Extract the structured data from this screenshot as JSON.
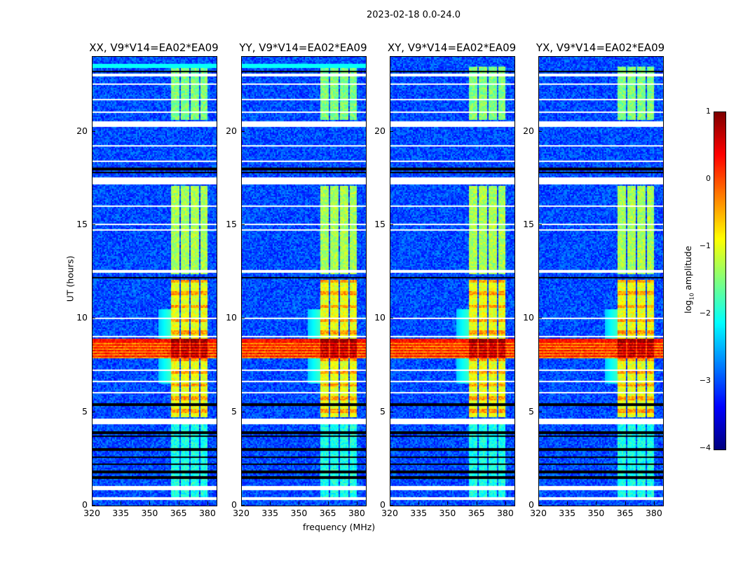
{
  "suptitle": "2023-02-18 0.0-24.0",
  "xlabel": "frequency (MHz)",
  "ylabel": "UT (hours)",
  "colorbar": {
    "label_main": "log",
    "label_sub": "10",
    "label_rest": " amplitude",
    "min": -4,
    "max": 1,
    "ticks": [
      "1",
      "0",
      "−1",
      "−2",
      "−3",
      "−4"
    ],
    "tick_values": [
      1,
      0,
      -1,
      -2,
      -3,
      -4
    ],
    "colormap": "jet"
  },
  "chart_data": {
    "type": "heatmap",
    "panels": [
      {
        "title": "XX, V9*V14=EA02*EA09",
        "top_strip": true
      },
      {
        "title": "YY, V9*V14=EA02*EA09",
        "top_strip": true
      },
      {
        "title": "XY, V9*V14=EA02*EA09",
        "top_strip": false
      },
      {
        "title": "YX, V9*V14=EA02*EA09",
        "top_strip": false
      }
    ],
    "xlim": [
      320,
      384.4
    ],
    "ylim": [
      0,
      24
    ],
    "xticks": [
      "320",
      "335",
      "350",
      "365",
      "380"
    ],
    "xtick_values": [
      320,
      335,
      350,
      365,
      380
    ],
    "yticks": [
      "0",
      "5",
      "10",
      "15",
      "20"
    ],
    "ytick_values": [
      0,
      5,
      10,
      15,
      20
    ],
    "background_level": -3.0,
    "rfi_channels_mhz": [
      [
        361,
        365
      ],
      [
        366,
        370
      ],
      [
        371,
        375
      ],
      [
        376,
        380
      ]
    ],
    "rfi_epochs": [
      {
        "t": [
          0.3,
          4.5
        ],
        "level": -2.0
      },
      {
        "t": [
          4.7,
          12.1
        ],
        "level": -1.0
      },
      {
        "t": [
          12.4,
          17.1
        ],
        "level": -1.3
      },
      {
        "t": [
          20.6,
          23.5
        ],
        "level": -1.5
      }
    ],
    "broadband_event": {
      "t": [
        7.9,
        8.9
      ],
      "level": 0.3
    },
    "flagged_rows_hours": [
      [
        0.35,
        0.45
      ],
      [
        0.85,
        1.05
      ],
      [
        4.4,
        4.6
      ],
      [
        6.0,
        6.05
      ],
      [
        6.6,
        6.65
      ],
      [
        7.2,
        7.25
      ],
      [
        9.0,
        9.05
      ],
      [
        10.0,
        10.05
      ],
      [
        12.45,
        12.55
      ],
      [
        14.7,
        14.75
      ],
      [
        15.0,
        15.05
      ],
      [
        16.0,
        16.05
      ],
      [
        17.2,
        17.5
      ],
      [
        18.4,
        18.45
      ],
      [
        19.2,
        19.25
      ],
      [
        20.3,
        20.5
      ],
      [
        21.0,
        21.05
      ],
      [
        21.7,
        21.75
      ],
      [
        22.5,
        22.55
      ],
      [
        23.0,
        23.05
      ]
    ],
    "dead_rows_hours": [
      1.5,
      1.8,
      2.2,
      2.6,
      3.0,
      3.7,
      3.9,
      5.4,
      12.2,
      17.8,
      18.0,
      23.2
    ]
  }
}
